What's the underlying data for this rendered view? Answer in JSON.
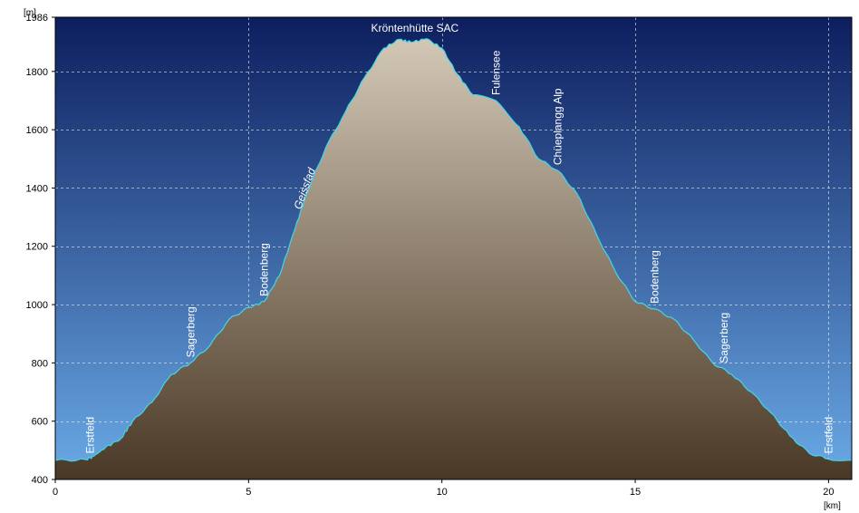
{
  "chart_data": {
    "type": "area",
    "title": "",
    "xlabel": "",
    "ylabel": "",
    "y_unit": "[m]",
    "x_unit": "[km]",
    "xlim": [
      0,
      20.6
    ],
    "ylim": [
      400,
      1986
    ],
    "y_ticks": [
      400,
      600,
      800,
      1000,
      1200,
      1400,
      1600,
      1800,
      1986
    ],
    "x_ticks": [
      0,
      5,
      10,
      15,
      20
    ],
    "grid": true,
    "colors": {
      "sky_top": "#0d1e5e",
      "sky_bottom": "#6aaae6",
      "ground_top": "#d2c7b5",
      "ground_bottom": "#4a3826",
      "profile_line": "#3fd7ea",
      "grid": "#ffffff",
      "frame": "#000000"
    },
    "profile": [
      [
        0,
        465
      ],
      [
        0.8,
        468
      ],
      [
        1.0,
        480
      ],
      [
        1.3,
        510
      ],
      [
        1.7,
        540
      ],
      [
        2.0,
        600
      ],
      [
        2.5,
        665
      ],
      [
        3.0,
        760
      ],
      [
        3.5,
        800
      ],
      [
        4.0,
        860
      ],
      [
        4.5,
        950
      ],
      [
        5.0,
        990
      ],
      [
        5.4,
        1010
      ],
      [
        5.8,
        1100
      ],
      [
        6.2,
        1260
      ],
      [
        6.5,
        1380
      ],
      [
        7.0,
        1540
      ],
      [
        7.5,
        1660
      ],
      [
        8.0,
        1780
      ],
      [
        8.5,
        1880
      ],
      [
        8.9,
        1910
      ],
      [
        9.2,
        1900
      ],
      [
        9.6,
        1912
      ],
      [
        10.0,
        1880
      ],
      [
        10.4,
        1790
      ],
      [
        10.8,
        1720
      ],
      [
        11.4,
        1700
      ],
      [
        12.0,
        1610
      ],
      [
        12.5,
        1500
      ],
      [
        13.0,
        1460
      ],
      [
        13.5,
        1380
      ],
      [
        14.0,
        1240
      ],
      [
        14.5,
        1110
      ],
      [
        15.0,
        1010
      ],
      [
        15.5,
        985
      ],
      [
        16.0,
        950
      ],
      [
        16.5,
        880
      ],
      [
        17.0,
        800
      ],
      [
        17.5,
        760
      ],
      [
        18.0,
        700
      ],
      [
        18.5,
        630
      ],
      [
        19.0,
        550
      ],
      [
        19.5,
        490
      ],
      [
        20.0,
        470
      ],
      [
        20.6,
        466
      ]
    ],
    "waypoints": [
      {
        "name": "Erstfeld",
        "x": 0.9,
        "y": 470,
        "orientation": "vertical"
      },
      {
        "name": "Sagerberg",
        "x": 3.5,
        "y": 800,
        "orientation": "vertical"
      },
      {
        "name": "Bodenberg",
        "x": 5.4,
        "y": 1010,
        "orientation": "vertical"
      },
      {
        "name": "Geissfad",
        "x": 6.3,
        "y": 1300,
        "orientation": "slanted"
      },
      {
        "name": "Kröntenhütte SAC",
        "x": 9.3,
        "y": 1912,
        "orientation": "horizontal"
      },
      {
        "name": "Fulensee",
        "x": 11.4,
        "y": 1700,
        "orientation": "vertical"
      },
      {
        "name": "Chüeplangg Alp",
        "x": 13.0,
        "y": 1460,
        "orientation": "vertical"
      },
      {
        "name": "Bodenberg",
        "x": 15.5,
        "y": 985,
        "orientation": "vertical"
      },
      {
        "name": "Sagerberg",
        "x": 17.3,
        "y": 780,
        "orientation": "vertical"
      },
      {
        "name": "Erstfeld",
        "x": 20.0,
        "y": 470,
        "orientation": "vertical"
      }
    ]
  }
}
